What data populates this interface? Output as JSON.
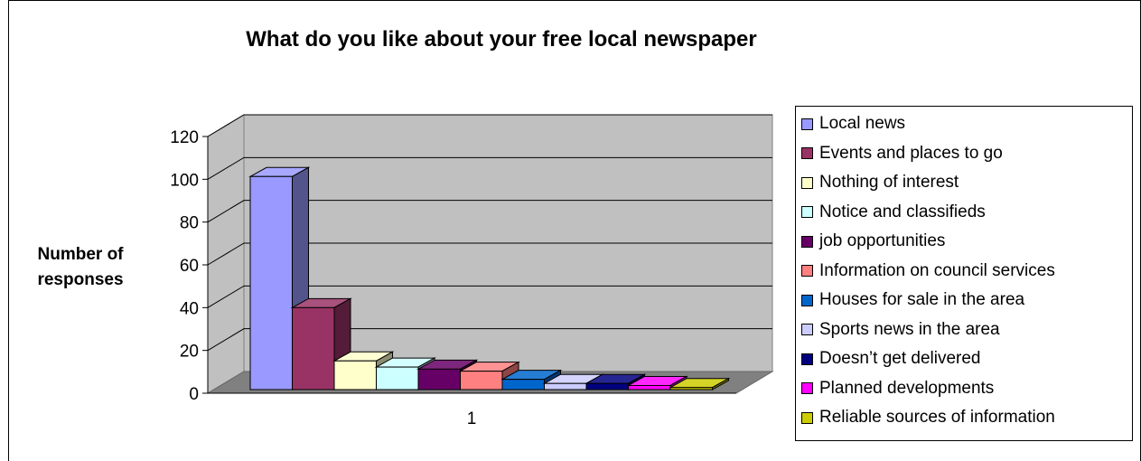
{
  "chart_data": {
    "type": "bar",
    "title": "What do you like about your free local newspaper",
    "xlabel": "",
    "ylabel": [
      "Number of",
      "responses"
    ],
    "categories": [
      "1"
    ],
    "ylim": [
      0,
      120
    ],
    "yticks": [
      "0",
      "20",
      "40",
      "60",
      "80",
      "100",
      "120"
    ],
    "grid": true,
    "legend_position": "right",
    "series": [
      {
        "name": "Local news",
        "values": [
          104
        ],
        "color": "#9999FF"
      },
      {
        "name": "Events and places to go",
        "values": [
          40
        ],
        "color": "#993366"
      },
      {
        "name": "Nothing of interest",
        "values": [
          14
        ],
        "color": "#FFFFCC"
      },
      {
        "name": "Notice and classifieds",
        "values": [
          11
        ],
        "color": "#CCFFFF"
      },
      {
        "name": "job opportunities",
        "values": [
          10
        ],
        "color": "#660066"
      },
      {
        "name": "Information on council services",
        "values": [
          9
        ],
        "color": "#FF8080"
      },
      {
        "name": "Houses for sale in the area",
        "values": [
          5
        ],
        "color": "#0066CC"
      },
      {
        "name": "Sports news in the area",
        "values": [
          3
        ],
        "color": "#CCCCFF"
      },
      {
        "name": "Doesn’t get delivered",
        "values": [
          3
        ],
        "color": "#000080"
      },
      {
        "name": "Planned developments",
        "values": [
          2
        ],
        "color": "#FF00FF"
      },
      {
        "name": "Reliable sources of information",
        "values": [
          1
        ],
        "color": "#CCCC00"
      }
    ]
  }
}
